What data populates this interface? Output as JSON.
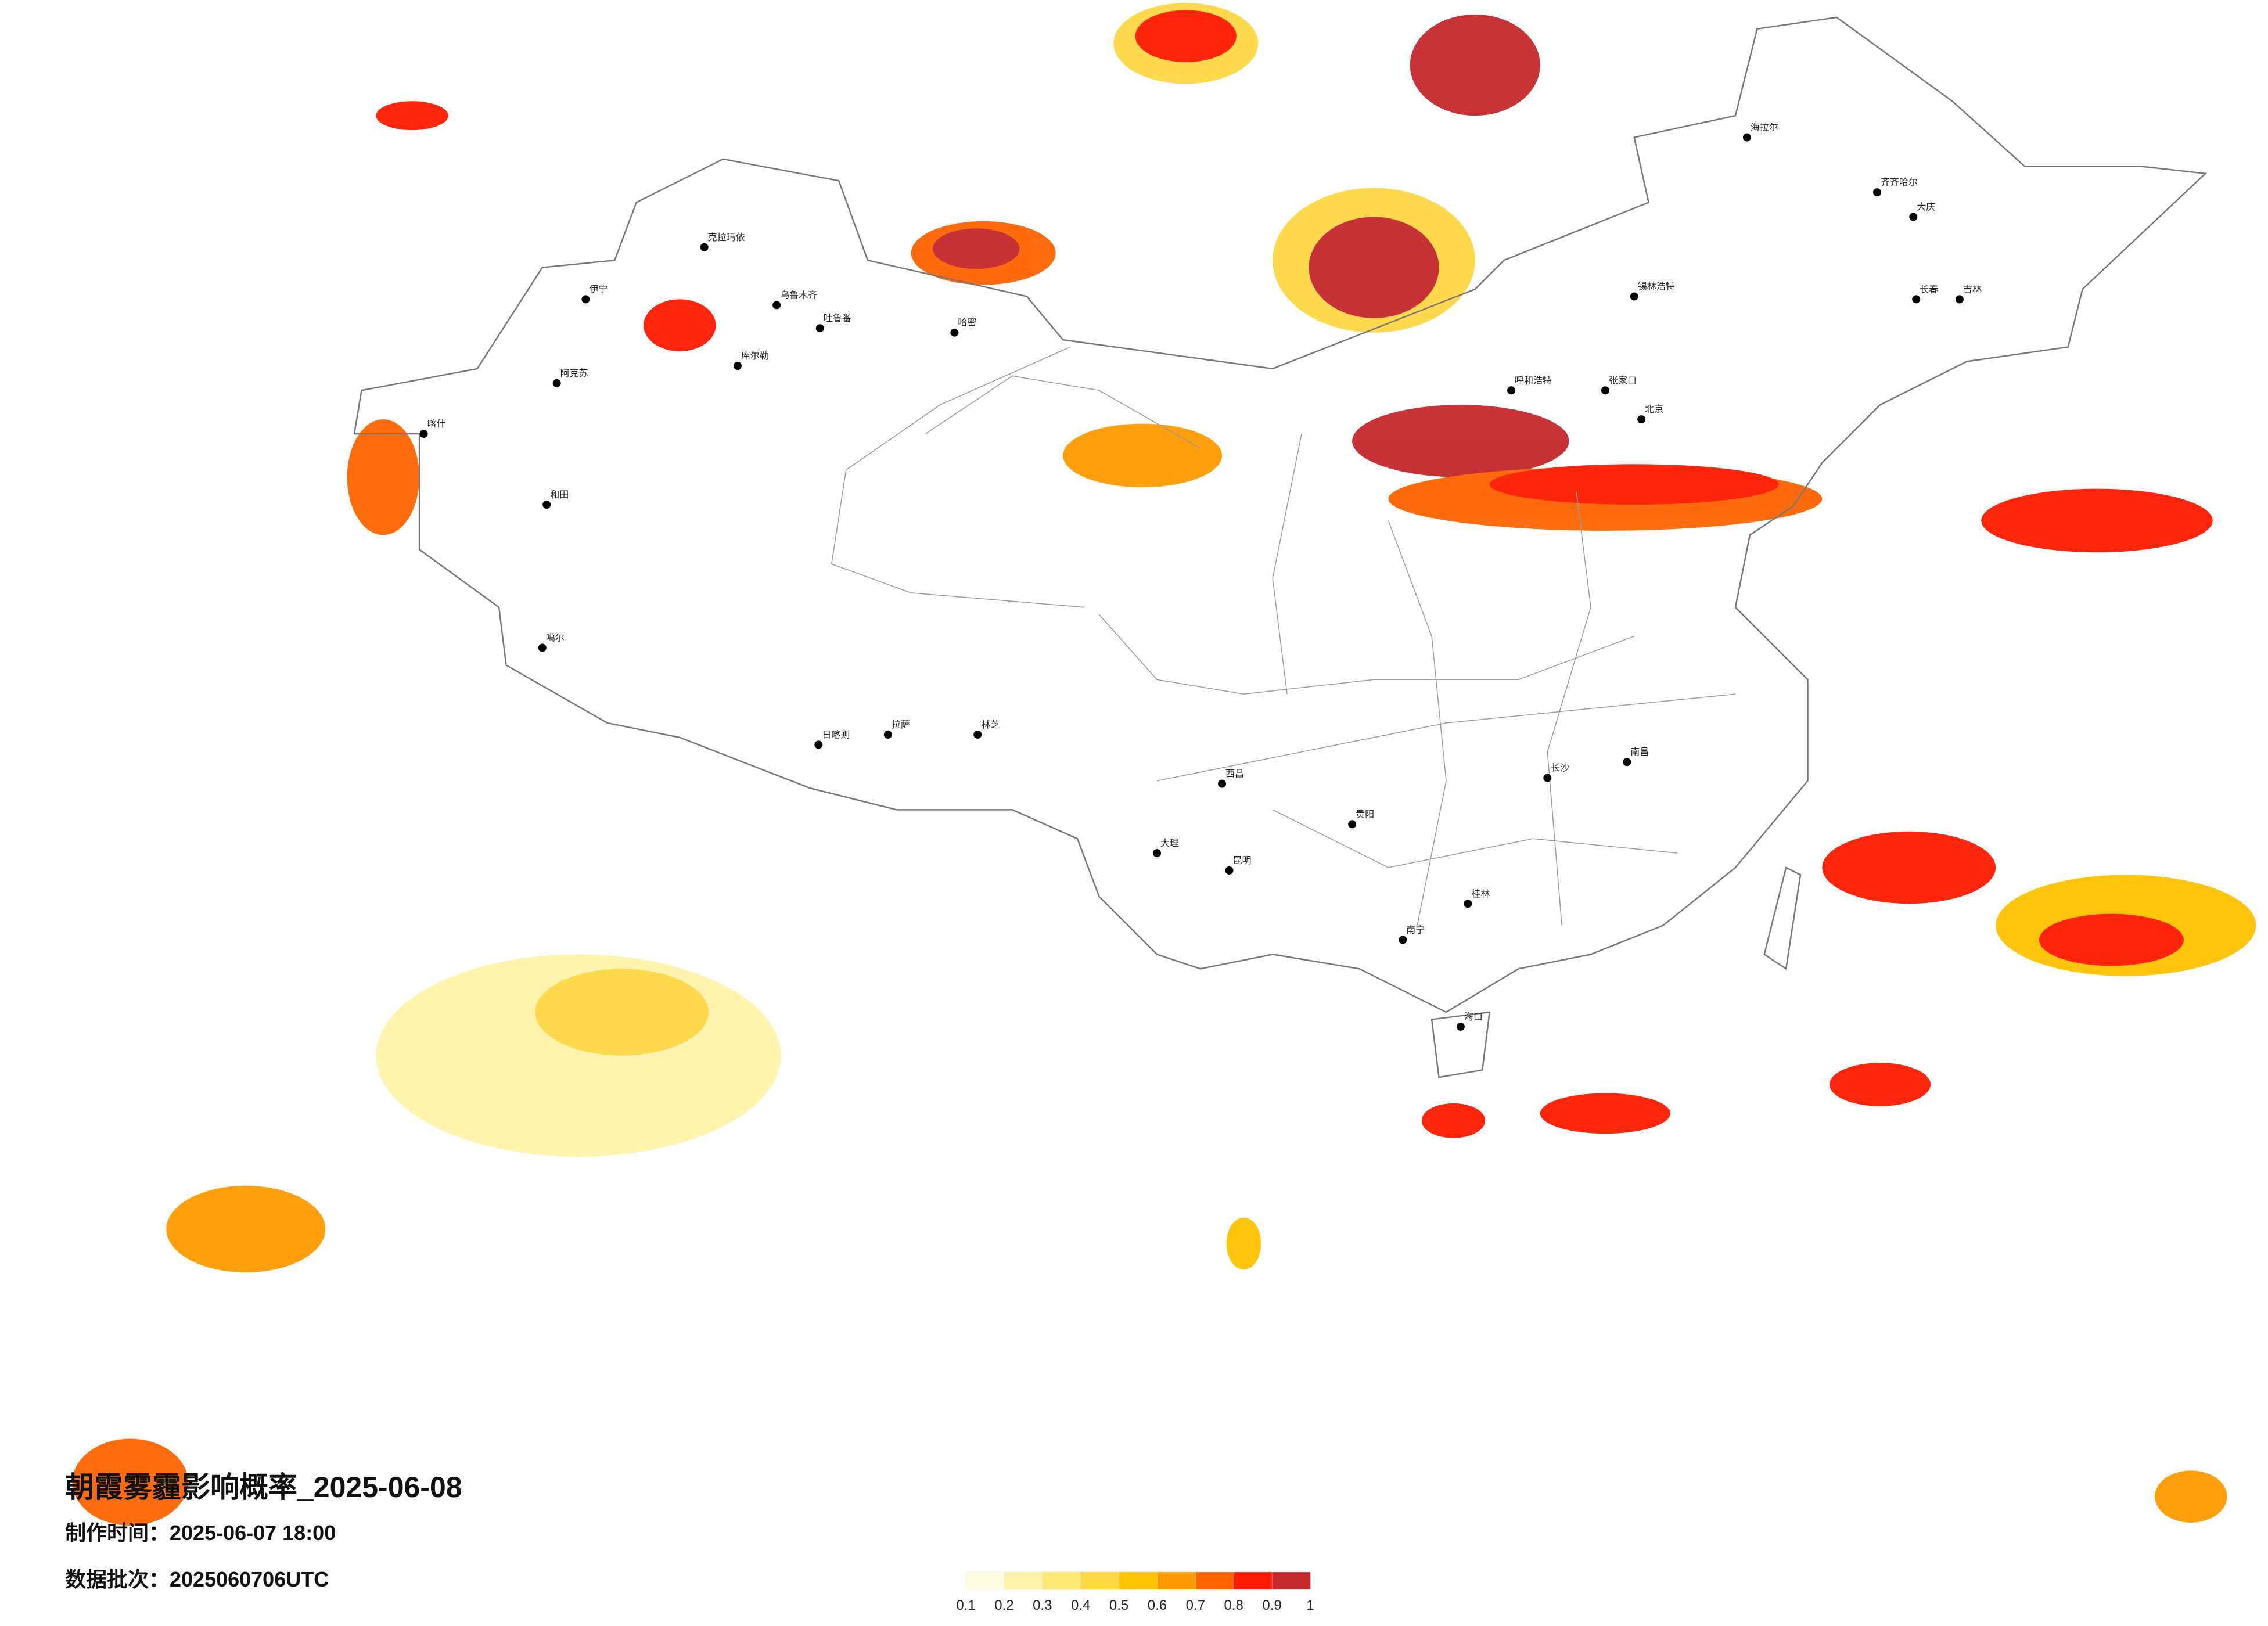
{
  "title": "朝霞雾霾影响概率_2025-06-08",
  "made_time": "制作时间：2025-06-07 18:00",
  "data_batch": "数据批次：2025060706UTC",
  "legend": {
    "colors": [
      "#fffbe0",
      "#fff3aa",
      "#ffe875",
      "#ffd744",
      "#ffc200",
      "#ff9a00",
      "#ff6400",
      "#ff1a00",
      "#c4282c"
    ],
    "ticks": [
      0.1,
      0.2,
      0.3,
      0.4,
      0.5,
      0.6,
      0.7,
      0.8,
      0.9,
      1
    ]
  },
  "cities": [
    {
      "name": "克拉玛依"
    },
    {
      "name": "伊宁"
    },
    {
      "name": "乌鲁木齐"
    },
    {
      "name": "吐鲁番"
    },
    {
      "name": "哈密"
    },
    {
      "name": "库尔勒"
    },
    {
      "name": "阿克苏"
    },
    {
      "name": "喀什"
    },
    {
      "name": "和田"
    },
    {
      "name": "噶尔"
    },
    {
      "name": "日喀则"
    },
    {
      "name": "拉萨"
    },
    {
      "name": "林芝"
    },
    {
      "name": "海拉尔"
    },
    {
      "name": "齐齐哈尔"
    },
    {
      "name": "大庆"
    },
    {
      "name": "长春"
    },
    {
      "name": "吉林"
    },
    {
      "name": "锡林浩特"
    },
    {
      "name": "呼和浩特"
    },
    {
      "name": "张家口"
    },
    {
      "name": "北京"
    },
    {
      "name": "西昌"
    },
    {
      "name": "大理"
    },
    {
      "name": "昆明"
    },
    {
      "name": "贵阳"
    },
    {
      "name": "长沙"
    },
    {
      "name": "南昌"
    },
    {
      "name": "桂林"
    },
    {
      "name": "南宁"
    },
    {
      "name": "海口"
    }
  ]
}
